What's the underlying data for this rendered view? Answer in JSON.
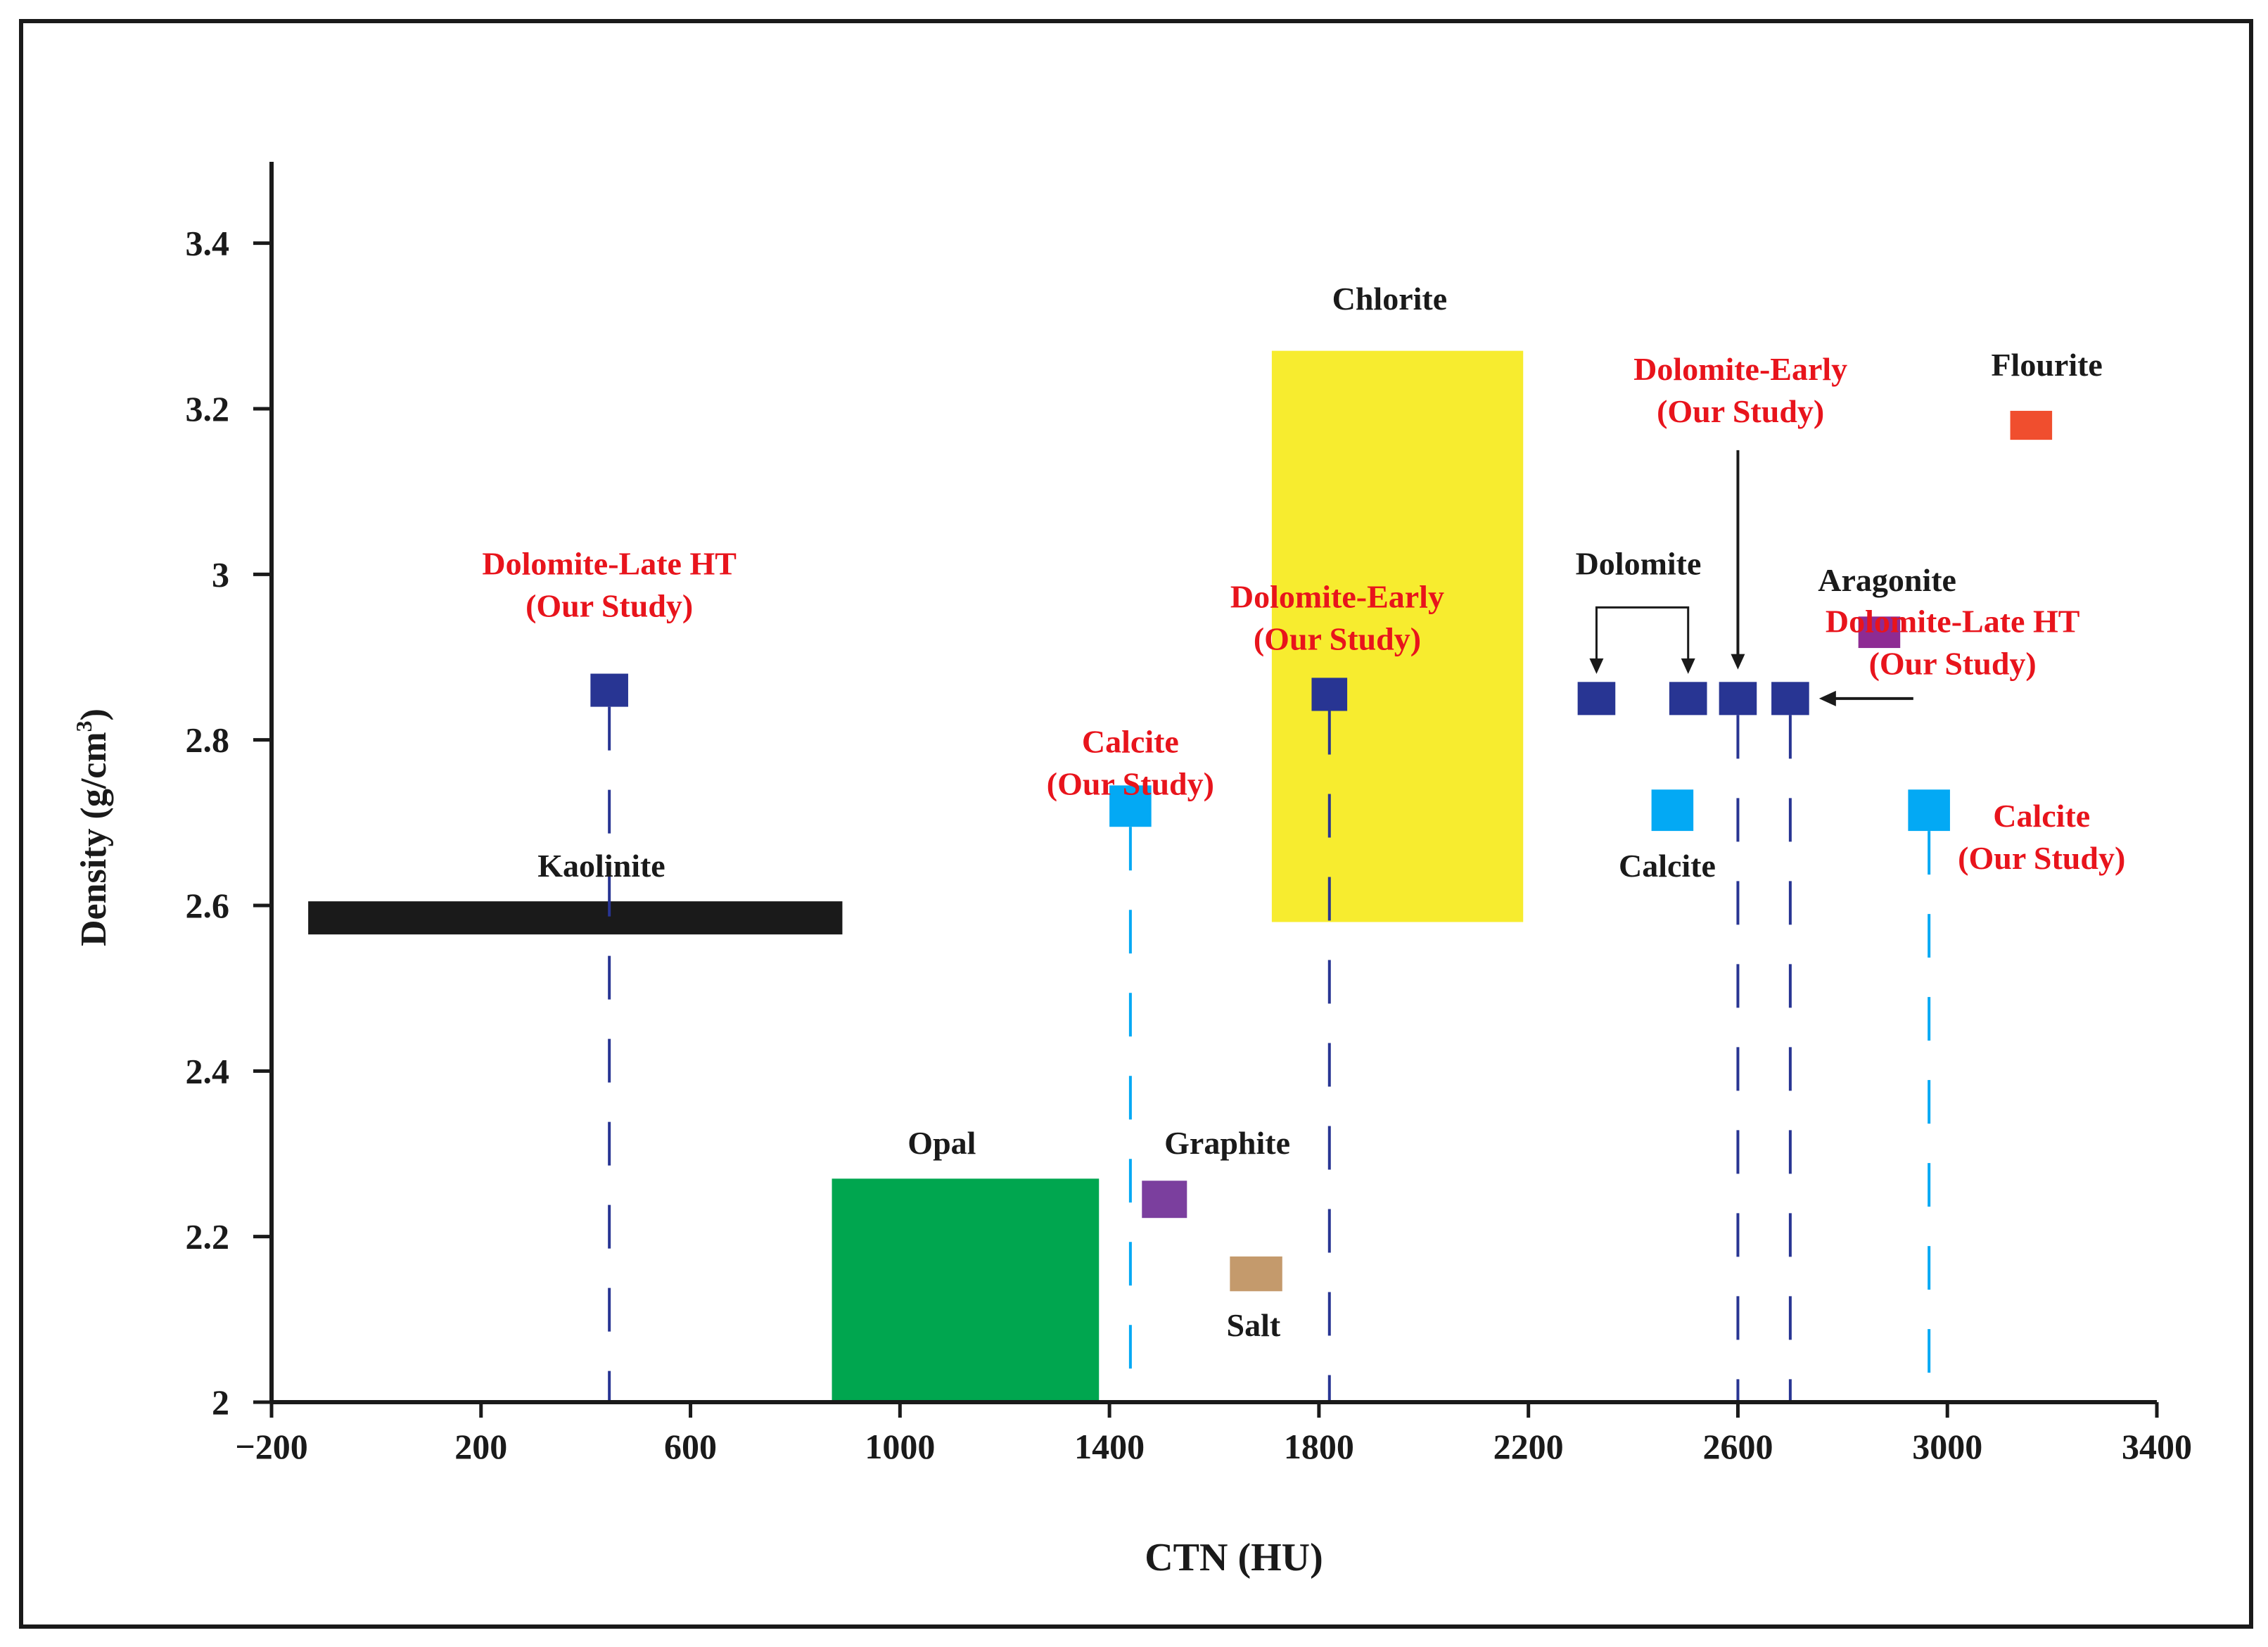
{
  "chart_data": {
    "type": "scatter",
    "xlabel": "CTN (HU)",
    "ylabel": "Density (g/cm",
    "ylabel_sup": "3",
    "ylabel_close": ")",
    "xlim": [
      -200,
      3400
    ],
    "ylim": [
      2,
      3.5
    ],
    "xticks": [
      -200,
      200,
      600,
      1000,
      1400,
      1800,
      2200,
      2600,
      3000,
      3400
    ],
    "xtick_labels": [
      "−200",
      "200",
      "600",
      "1000",
      "1400",
      "1800",
      "2200",
      "2600",
      "3000",
      "3400"
    ],
    "yticks": [
      2,
      2.2,
      2.4,
      2.6,
      2.8,
      3,
      3.2,
      3.4
    ],
    "ytick_labels": [
      "2",
      "2.2",
      "2.4",
      "2.6",
      "2.8",
      "3",
      "3.2",
      "3.4"
    ],
    "grid": false,
    "colors": {
      "dolomite": "#283593",
      "calcite": "#03a9f4",
      "kaolinite": "#1a1a1a",
      "chlorite": "#f7ec2f",
      "opal": "#00a64f",
      "graphite": "#7b3f9e",
      "aragonite": "#8e2b93",
      "salt": "#c49a6c",
      "flourite": "#f04e2e",
      "study_label": "#e8141c",
      "label": "#1a1a1a"
    },
    "ranges": [
      {
        "name": "Kaolinite",
        "x": [
          -130,
          890
        ],
        "y": [
          2.565,
          2.605
        ],
        "color": "kaolinite"
      },
      {
        "name": "Chlorite",
        "x": [
          1710,
          2190
        ],
        "y": [
          2.58,
          3.27
        ],
        "color": "chlorite"
      },
      {
        "name": "Opal",
        "x": [
          870,
          1380
        ],
        "y": [
          2.0,
          2.27
        ],
        "color": "opal"
      }
    ],
    "points": [
      {
        "name": "Dolomite-Late HT",
        "x": 445,
        "y": 2.86,
        "w": 72,
        "h": 0.04,
        "color": "dolomite",
        "study": true,
        "drop": true
      },
      {
        "name": "Calcite",
        "x": 1440,
        "y": 2.72,
        "w": 80,
        "h": 0.05,
        "color": "calcite",
        "study": true,
        "drop": true
      },
      {
        "name": "Dolomite-Early",
        "x": 1820,
        "y": 2.855,
        "w": 68,
        "h": 0.04,
        "color": "dolomite",
        "study": true,
        "drop": true
      },
      {
        "name": "Dolomite",
        "x": 2330,
        "y": 2.85,
        "w": 72,
        "h": 0.04,
        "color": "dolomite",
        "study": false,
        "drop": false
      },
      {
        "name": "Dolomite",
        "x": 2505,
        "y": 2.85,
        "w": 72,
        "h": 0.04,
        "color": "dolomite",
        "study": false,
        "drop": false
      },
      {
        "name": "Dolomite-Early",
        "x": 2600,
        "y": 2.85,
        "w": 72,
        "h": 0.04,
        "color": "dolomite",
        "study": true,
        "drop": true
      },
      {
        "name": "Dolomite-Late HT",
        "x": 2700,
        "y": 2.85,
        "w": 72,
        "h": 0.04,
        "color": "dolomite",
        "study": true,
        "drop": true
      },
      {
        "name": "Calcite",
        "x": 2475,
        "y": 2.715,
        "w": 80,
        "h": 0.05,
        "color": "calcite",
        "study": false,
        "drop": false
      },
      {
        "name": "Calcite",
        "x": 2965,
        "y": 2.715,
        "w": 80,
        "h": 0.05,
        "color": "calcite",
        "study": true,
        "drop": true
      },
      {
        "name": "Graphite",
        "x": 1505,
        "y": 2.245,
        "w": 86,
        "h": 0.045,
        "color": "graphite",
        "study": false,
        "drop": false
      },
      {
        "name": "Salt",
        "x": 1680,
        "y": 2.155,
        "w": 100,
        "h": 0.042,
        "color": "salt",
        "study": false,
        "drop": false
      },
      {
        "name": "Aragonite",
        "x": 2870,
        "y": 2.93,
        "w": 80,
        "h": 0.038,
        "color": "aragonite",
        "study": false,
        "drop": false
      },
      {
        "name": "Flourite",
        "x": 3160,
        "y": 3.18,
        "w": 80,
        "h": 0.035,
        "color": "flourite",
        "study": false,
        "drop": false
      }
    ],
    "annotations": [
      {
        "lines": [
          "Dolomite-Late HT",
          "(Our Study)"
        ],
        "x": 445,
        "y": 3.0,
        "color": "study_label"
      },
      {
        "lines": [
          "Calcite",
          "(Our Study)"
        ],
        "x": 1440,
        "y": 2.785,
        "color": "study_label"
      },
      {
        "lines": [
          "Dolomite-Early",
          "(Our Study)"
        ],
        "x": 1835,
        "y": 2.96,
        "color": "study_label"
      },
      {
        "lines": [
          "Dolomite-Early",
          "(Our Study)"
        ],
        "x": 2605,
        "y": 3.235,
        "color": "study_label"
      },
      {
        "lines": [
          "Dolomite-Late HT",
          "(Our Study)"
        ],
        "x": 3010,
        "y": 2.93,
        "color": "study_label"
      },
      {
        "lines": [
          "Calcite",
          "(Our Study)"
        ],
        "x": 3180,
        "y": 2.695,
        "color": "study_label"
      },
      {
        "lines": [
          "Chlorite"
        ],
        "x": 1935,
        "y": 3.32,
        "color": "label"
      },
      {
        "lines": [
          "Kaolinite"
        ],
        "x": 430,
        "y": 2.635,
        "color": "label"
      },
      {
        "lines": [
          "Opal"
        ],
        "x": 1080,
        "y": 2.3,
        "color": "label"
      },
      {
        "lines": [
          "Graphite"
        ],
        "x": 1625,
        "y": 2.3,
        "color": "label"
      },
      {
        "lines": [
          "Salt"
        ],
        "x": 1675,
        "y": 2.08,
        "color": "label"
      },
      {
        "lines": [
          "Calcite"
        ],
        "x": 2465,
        "y": 2.635,
        "color": "label"
      },
      {
        "lines": [
          "Dolomite"
        ],
        "x": 2410,
        "y": 3.0,
        "color": "label"
      },
      {
        "lines": [
          "Aragonite"
        ],
        "x": 2885,
        "y": 2.98,
        "color": "label"
      },
      {
        "lines": [
          "Flourite"
        ],
        "x": 3190,
        "y": 3.24,
        "color": "label"
      }
    ]
  }
}
